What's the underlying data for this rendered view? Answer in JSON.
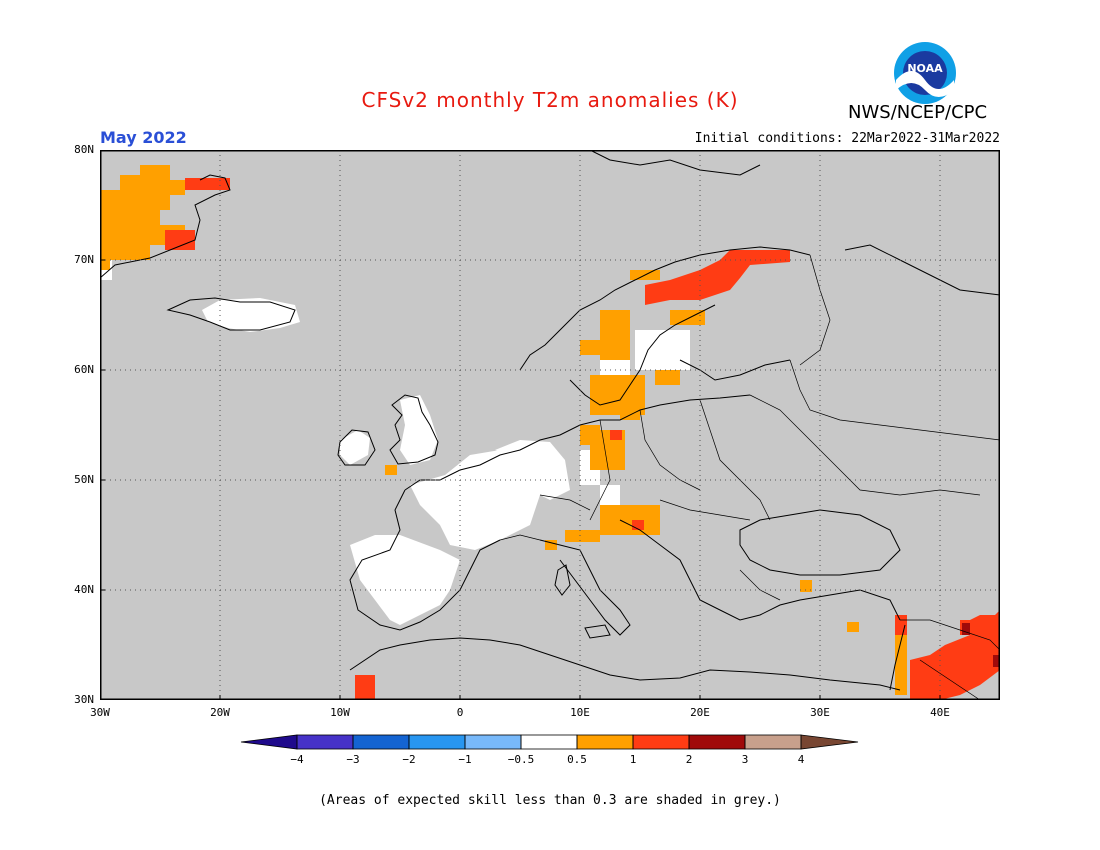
{
  "title": "CFSv2 monthly T2m anomalies (K)",
  "organization": "NWS/NCEP/CPC",
  "logo_text": "NOAA",
  "month_label": "May 2022",
  "initial_conditions": "Initial conditions: 22Mar2022-31Mar2022",
  "footnote": "(Areas of expected skill less than 0.3 are shaded in grey.)",
  "map": {
    "extent": {
      "lon_min": -30,
      "lon_max": 45,
      "lat_min": 30,
      "lat_max": 80
    },
    "lat_labels": [
      "80N",
      "70N",
      "60N",
      "50N",
      "40N",
      "30N"
    ],
    "lon_labels": [
      "30W",
      "20W",
      "10W",
      "0",
      "10E",
      "20E",
      "30E",
      "40E"
    ],
    "background_color": "#c8c8c8",
    "gridlines": "dotted",
    "anomaly_regions": [
      {
        "region": "Greenland east coast",
        "category": "0.5 to 1"
      },
      {
        "region": "Greenland east coast",
        "category": "1 to 2"
      },
      {
        "region": "Iceland",
        "category": "-0.5 to 0.5"
      },
      {
        "region": "British Isles / France / Iberia",
        "category": "-0.5 to 0.5"
      },
      {
        "region": "Northern Fennoscandia",
        "category": "1 to 2"
      },
      {
        "region": "Scandinavia / Germany / Alps",
        "category": "0.5 to 1"
      },
      {
        "region": "Middle East",
        "category": "1 to 2"
      },
      {
        "region": "Middle East",
        "category": "2 to 3"
      }
    ]
  },
  "colorbar": {
    "colors": [
      "#1f0a8c",
      "#4632c8",
      "#1464d2",
      "#2896f0",
      "#78b9fa",
      "#ffffff",
      "#ffa000",
      "#ff3c14",
      "#a00a0a",
      "#c8a08c",
      "#784632"
    ],
    "tick_labels": [
      "−4",
      "−3",
      "−2",
      "−1",
      "−0.5",
      "0.5",
      "1",
      "2",
      "3",
      "4"
    ]
  }
}
